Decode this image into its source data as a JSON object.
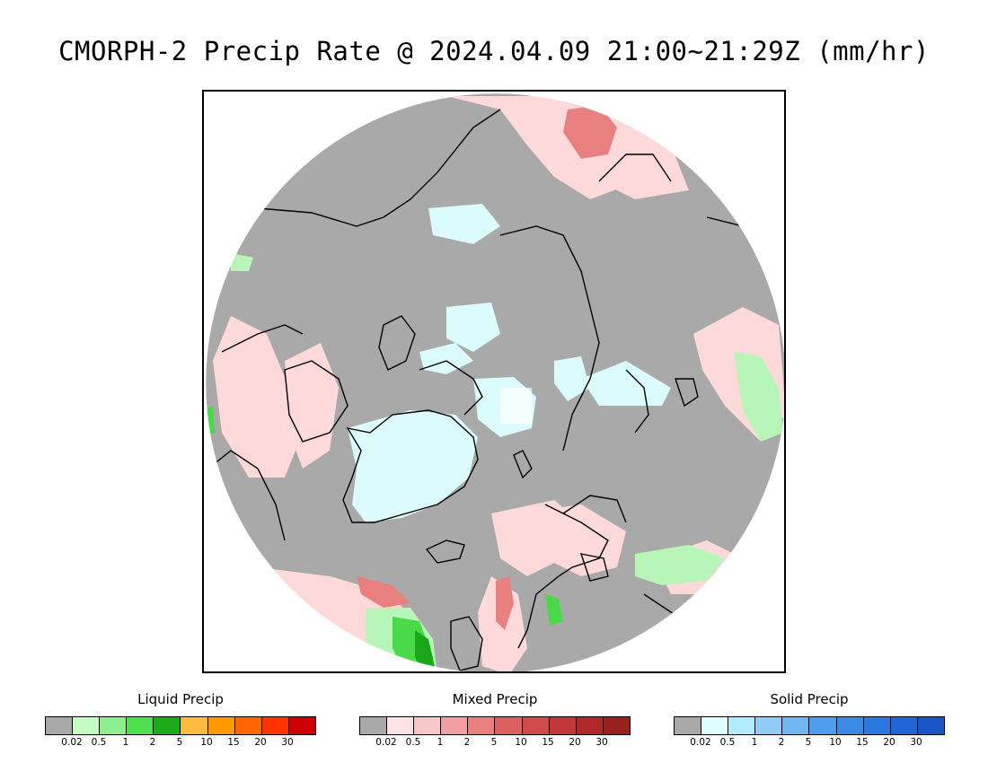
{
  "title": "CMORPH-2 Precip Rate @ 2024.04.09 21:00~21:29Z (mm/hr)",
  "map": {
    "projection": "north-polar-stereographic",
    "colors": {
      "no_precip": "#a9a9a9",
      "mixed_light": "#fdd9d9",
      "mixed_moderate": "#e87a7a",
      "solid_light": "#dcfbfd",
      "liquid_light": "#b8f5b8",
      "liquid_moderate": "#49d949",
      "liquid_heavy": "#1aa81a",
      "coastline": "#000000"
    }
  },
  "legends": [
    {
      "title": "Liquid Precip",
      "colors": [
        "#a9a9a9",
        "#c4fcc4",
        "#8cf08c",
        "#4ee04e",
        "#1aaa1a",
        "#ffbb40",
        "#ff9900",
        "#ff6600",
        "#ff3300",
        "#cc0000"
      ],
      "ticks": [
        "0.02",
        "0.5",
        "1",
        "2",
        "5",
        "10",
        "15",
        "20",
        "30"
      ]
    },
    {
      "title": "Mixed Precip",
      "colors": [
        "#a9a9a9",
        "#fde3e5",
        "#f9c6c8",
        "#f0a0a3",
        "#e88080",
        "#dd6060",
        "#d04a4a",
        "#c23838",
        "#b02828",
        "#9a1f1f"
      ],
      "ticks": [
        "0.02",
        "0.5",
        "1",
        "2",
        "5",
        "10",
        "15",
        "20",
        "30"
      ]
    },
    {
      "title": "Solid Precip",
      "colors": [
        "#a9a9a9",
        "#ddfdff",
        "#b0ecfb",
        "#90ccf7",
        "#70b6f3",
        "#4e9ef0",
        "#3a8ae6",
        "#2a78e0",
        "#1e66d8",
        "#1a55c8"
      ],
      "ticks": [
        "0.02",
        "0.5",
        "1",
        "2",
        "5",
        "10",
        "15",
        "20",
        "30"
      ]
    }
  ]
}
